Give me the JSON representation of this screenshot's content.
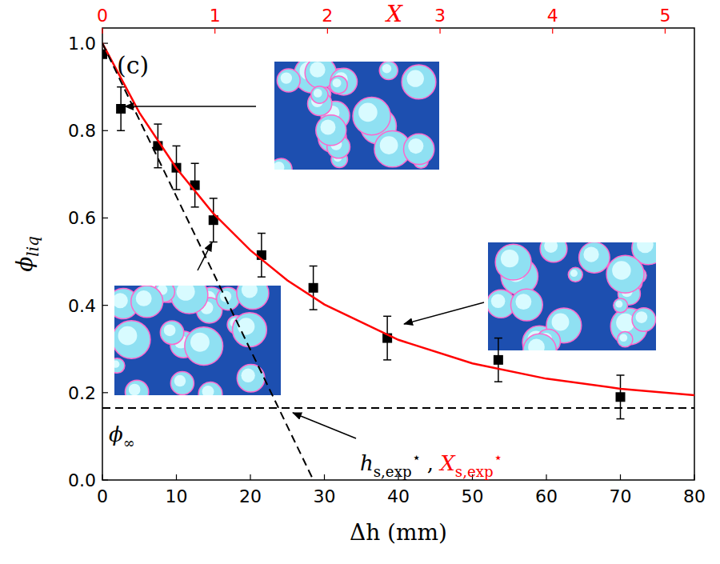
{
  "chart_data": {
    "type": "scatter",
    "xlabel": "Δh (mm)",
    "ylabel": {
      "text": "ϕ",
      "sub": "liq"
    },
    "x2label": "X",
    "x2color": "#ff0000",
    "xlim": [
      0,
      80
    ],
    "ylim": [
      0,
      1.035
    ],
    "x2lim": [
      0,
      5.26
    ],
    "xticks": [
      0,
      10,
      20,
      30,
      40,
      50,
      60,
      70,
      80
    ],
    "yticks": [
      {
        "value": 0,
        "label": "0.0"
      },
      {
        "value": 0.2,
        "label": "0.2"
      },
      {
        "value": 0.4,
        "label": "0.4"
      },
      {
        "value": 0.6,
        "label": "0.6"
      },
      {
        "value": 0.8,
        "label": "0.8"
      },
      {
        "value": 1.0,
        "label": "1.0"
      }
    ],
    "x2ticks": [
      0,
      1,
      2,
      3,
      4,
      5
    ],
    "grid": false,
    "series": [
      {
        "type": "scatter",
        "color": "#000000",
        "marker": "square",
        "x": [
          0,
          2.5,
          7.5,
          10,
          12.5,
          15,
          21.5,
          28.5,
          38.5,
          53.5,
          70
        ],
        "values": [
          0.975,
          0.85,
          0.765,
          0.715,
          0.675,
          0.595,
          0.515,
          0.44,
          0.325,
          0.275,
          0.19
        ],
        "errors": [
          0,
          0.05,
          0.05,
          0.05,
          0.05,
          0.05,
          0.05,
          0.05,
          0.05,
          0.05,
          0.05
        ]
      },
      {
        "type": "line",
        "color": "#ff0000",
        "line_style": "solid",
        "x": [
          0,
          5,
          10,
          15,
          20,
          25,
          30,
          40,
          50,
          60,
          70,
          80
        ],
        "values": [
          1.0,
          0.841,
          0.714,
          0.61,
          0.526,
          0.457,
          0.402,
          0.321,
          0.267,
          0.232,
          0.209,
          0.194
        ]
      },
      {
        "type": "line",
        "color": "#000000",
        "line_style": "dashed",
        "x": [
          0,
          28.5
        ],
        "values": [
          1.0,
          0
        ]
      },
      {
        "type": "line",
        "color": "#000000",
        "line_style": "dashed",
        "x": [
          0,
          80
        ],
        "values": [
          0.165,
          0.165
        ]
      }
    ],
    "annotations": [
      {
        "parts": [
          {
            "text": "(c)"
          }
        ]
      },
      {
        "parts": [
          {
            "text": "ϕ",
            "sub": "∞"
          }
        ]
      },
      {
        "parts": [
          {
            "text": "h",
            "sub": "s,exp",
            "sup": "⋆"
          },
          {
            "text": " , "
          },
          {
            "text": "X",
            "sub": "s,exp",
            "sup": "⋆",
            "color": "#ff0000"
          }
        ]
      }
    ]
  }
}
